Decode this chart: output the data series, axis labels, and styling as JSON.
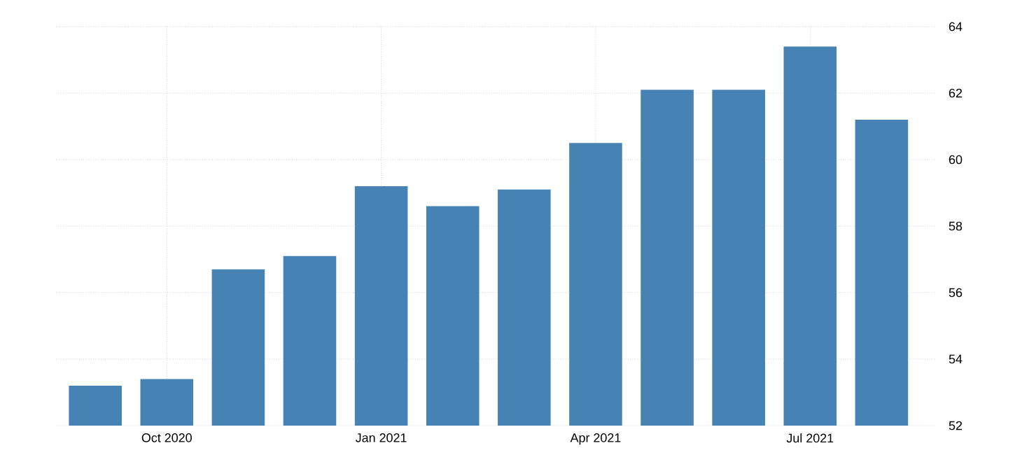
{
  "chart_data": {
    "type": "bar",
    "categories": [
      null,
      "Oct 2020",
      null,
      null,
      "Jan 2021",
      null,
      null,
      "Apr 2021",
      null,
      null,
      "Jul 2021",
      null
    ],
    "values": [
      53.2,
      53.4,
      56.7,
      57.1,
      59.2,
      58.6,
      59.1,
      60.5,
      62.1,
      62.1,
      63.4,
      61.2
    ],
    "color": "#4682b4",
    "ylim": [
      52,
      64
    ],
    "yticks": [
      52,
      54,
      56,
      58,
      60,
      62,
      64
    ],
    "grid": true
  }
}
